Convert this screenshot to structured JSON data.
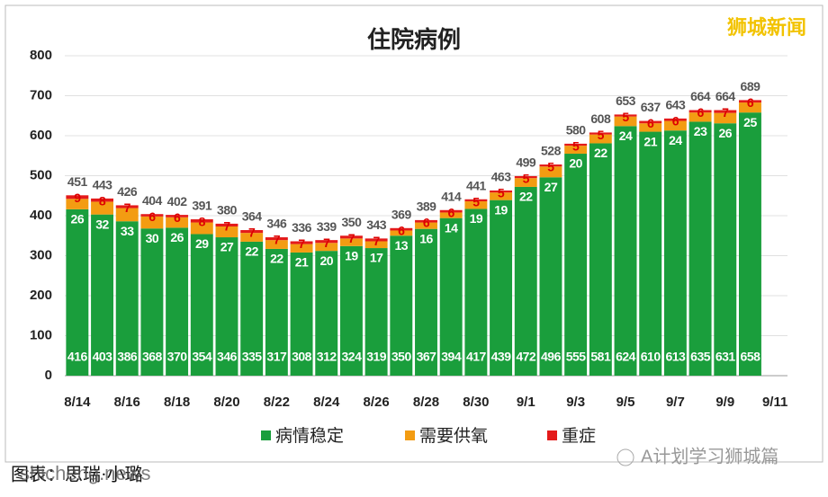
{
  "chart_data": {
    "type": "stacked_bar",
    "title": "住院病例",
    "categories": [
      "8/14",
      null,
      "8/16",
      null,
      "8/18",
      null,
      "8/20",
      null,
      "8/22",
      null,
      "8/24",
      null,
      "8/26",
      null,
      "8/28",
      null,
      "8/30",
      null,
      "9/1",
      null,
      "9/3",
      null,
      "9/5",
      null,
      "9/7",
      null,
      "9/9",
      null,
      "9/11"
    ],
    "series": [
      {
        "name": "病情稳定",
        "color": "#1a9e3c",
        "values": [
          416,
          403,
          386,
          368,
          370,
          354,
          346,
          335,
          317,
          308,
          312,
          324,
          319,
          350,
          367,
          394,
          417,
          439,
          472,
          496,
          555,
          581,
          624,
          610,
          613,
          635,
          631,
          658,
          null
        ]
      },
      {
        "name": "需要供氧",
        "color": "#f39c12",
        "values": [
          26,
          32,
          33,
          30,
          26,
          29,
          27,
          22,
          22,
          21,
          20,
          19,
          17,
          13,
          16,
          14,
          19,
          19,
          22,
          27,
          20,
          22,
          24,
          21,
          24,
          23,
          26,
          25,
          null
        ]
      },
      {
        "name": "重症",
        "color": "#e41a1a",
        "values": [
          9,
          8,
          7,
          6,
          6,
          8,
          7,
          7,
          7,
          7,
          7,
          7,
          7,
          6,
          6,
          6,
          5,
          5,
          5,
          5,
          5,
          5,
          5,
          6,
          6,
          6,
          7,
          6,
          null
        ]
      }
    ],
    "totals": [
      451,
      443,
      426,
      404,
      402,
      391,
      380,
      364,
      346,
      336,
      339,
      350,
      343,
      369,
      389,
      414,
      441,
      463,
      499,
      528,
      580,
      608,
      653,
      637,
      643,
      664,
      664,
      689,
      null
    ],
    "ylim": [
      0,
      800
    ],
    "yticks": [
      0,
      100,
      200,
      300,
      400,
      500,
      600,
      700,
      800
    ],
    "grid": true,
    "annotations": {
      "watermark": "狮城新闻",
      "source": "图表：思瑞·小璐",
      "site": "shicheng.news",
      "account": "A计划学习狮城篇"
    }
  }
}
